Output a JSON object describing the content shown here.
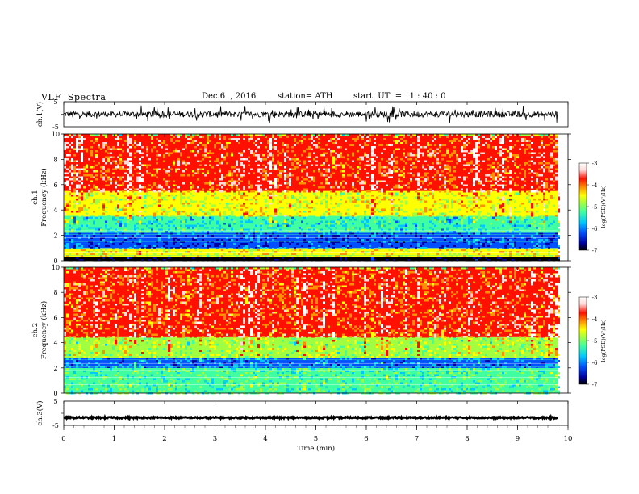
{
  "header": {
    "title": "VLF  Spectra",
    "date": "Dec.6  , 2016",
    "station": "station= ATH",
    "start_ut": "start  UT  =   1 : 40 : 0"
  },
  "colorbar": {
    "label": "log(PSD)(V²/Hz)",
    "ticks": [
      "-3",
      "-4",
      "-5",
      "-6",
      "-7"
    ],
    "colors": [
      "#000000",
      "#0000a0",
      "#0050ff",
      "#00c8ff",
      "#40ffa0",
      "#a0ff40",
      "#ffff00",
      "#ff9000",
      "#ff1000",
      "#ffd8d8",
      "#ffffff"
    ]
  },
  "chart_data": [
    {
      "id": "ch1-waveform",
      "type": "line",
      "ylabel": "ch.1(V)",
      "yticks": [
        "5",
        "-5"
      ],
      "ylim": [
        -5,
        5
      ],
      "xlim": [
        0,
        10
      ],
      "description_values": {
        "mean": 0,
        "typical_amplitude": 1.2,
        "spike_amplitude": 3.5,
        "data_end_min": 9.8
      }
    },
    {
      "id": "ch1-spectrogram",
      "type": "heatmap",
      "ylabel_lines": [
        "ch.1",
        "Frequency  (kHz)"
      ],
      "yticks": [
        "0",
        "2",
        "4",
        "6",
        "8",
        "10"
      ],
      "ylim": [
        0,
        10
      ],
      "xlim": [
        0,
        10
      ],
      "data_end_min": 9.8,
      "bands": [
        {
          "from_khz": 0,
          "to_khz": 0.3,
          "log_psd": -7
        },
        {
          "from_khz": 0.3,
          "to_khz": 1.0,
          "log_psd": -4.7
        },
        {
          "from_khz": 1.0,
          "to_khz": 2.2,
          "log_psd": -6.3
        },
        {
          "from_khz": 2.2,
          "to_khz": 3.6,
          "log_psd": -5.6
        },
        {
          "from_khz": 3.6,
          "to_khz": 5.5,
          "log_psd": -4.7
        },
        {
          "from_khz": 5.5,
          "to_khz": 10,
          "log_psd": -3.9
        }
      ]
    },
    {
      "id": "ch2-spectrogram",
      "type": "heatmap",
      "ylabel_lines": [
        "ch.2",
        "Frequency  (kHz)"
      ],
      "yticks": [
        "0",
        "2",
        "4",
        "6",
        "8",
        "10"
      ],
      "ylim": [
        0,
        10
      ],
      "xlim": [
        0,
        10
      ],
      "data_end_min": 9.8,
      "bands": [
        {
          "from_khz": 0,
          "to_khz": 2.0,
          "log_psd": -5.4
        },
        {
          "from_khz": 2.0,
          "to_khz": 2.8,
          "log_psd": -6.1
        },
        {
          "from_khz": 2.8,
          "to_khz": 4.5,
          "log_psd": -5.0
        },
        {
          "from_khz": 4.5,
          "to_khz": 10,
          "log_psd": -4.0
        }
      ]
    },
    {
      "id": "ch3-waveform",
      "type": "line",
      "ylabel": "ch.3(V)",
      "yticks": [
        "5",
        "-5"
      ],
      "ylim": [
        -5,
        5
      ],
      "xlim": [
        0,
        10
      ],
      "xlabel": "Time  (min)",
      "xticks": [
        "0",
        "1",
        "2",
        "3",
        "4",
        "5",
        "6",
        "7",
        "8",
        "9",
        "10"
      ],
      "description_values": {
        "mean": -1.8,
        "typical_amplitude": 0.3,
        "data_end_min": 9.8
      }
    }
  ]
}
